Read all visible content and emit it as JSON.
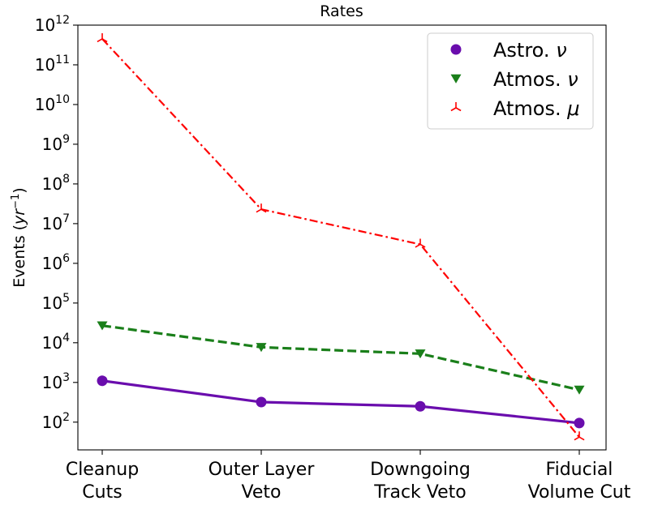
{
  "chart_data": {
    "type": "line",
    "title": "Rates",
    "xlabel": "",
    "ylabel": "Events (yr⁻¹)",
    "ylabel_parts": {
      "text": "Events (",
      "var": "yr",
      "exp": "−1",
      "close": ")"
    },
    "categories": [
      [
        "Cleanup",
        "Cuts"
      ],
      [
        "Outer Layer",
        "Veto"
      ],
      [
        "Downgoing",
        "Track Veto"
      ],
      [
        "Fiducial",
        "Volume Cut"
      ]
    ],
    "y_scale": "log",
    "ylim": [
      20,
      1000000000000.0
    ],
    "yticks": [
      {
        "value": 100,
        "base": "10",
        "exp": "2"
      },
      {
        "value": 1000,
        "base": "10",
        "exp": "3"
      },
      {
        "value": 10000,
        "base": "10",
        "exp": "4"
      },
      {
        "value": 100000,
        "base": "10",
        "exp": "5"
      },
      {
        "value": 1000000,
        "base": "10",
        "exp": "6"
      },
      {
        "value": 10000000,
        "base": "10",
        "exp": "7"
      },
      {
        "value": 100000000,
        "base": "10",
        "exp": "8"
      },
      {
        "value": 1000000000,
        "base": "10",
        "exp": "9"
      },
      {
        "value": 10000000000,
        "base": "10",
        "exp": "10"
      },
      {
        "value": 100000000000,
        "base": "10",
        "exp": "11"
      },
      {
        "value": 1000000000000,
        "base": "10",
        "exp": "12"
      }
    ],
    "grid": false,
    "legend_position": "top-right",
    "series": [
      {
        "name": "Astro. ν",
        "name_parts": {
          "text": "Astro. ",
          "sym": "ν"
        },
        "values": [
          1100,
          320,
          250,
          95
        ],
        "color": "#6a0dad",
        "line": "solid",
        "marker": "circle"
      },
      {
        "name": "Atmos. ν",
        "name_parts": {
          "text": "Atmos. ",
          "sym": "ν"
        },
        "values": [
          27000,
          7700,
          5300,
          650
        ],
        "color": "#1a7f1a",
        "line": "dashed",
        "marker": "triangle-down"
      },
      {
        "name": "Atmos. μ",
        "name_parts": {
          "text": "Atmos. ",
          "sym": "μ"
        },
        "values": [
          450000000000,
          23000000,
          3000000,
          42
        ],
        "color": "#ff0000",
        "line": "dashdot",
        "marker": "tri-down"
      }
    ]
  }
}
